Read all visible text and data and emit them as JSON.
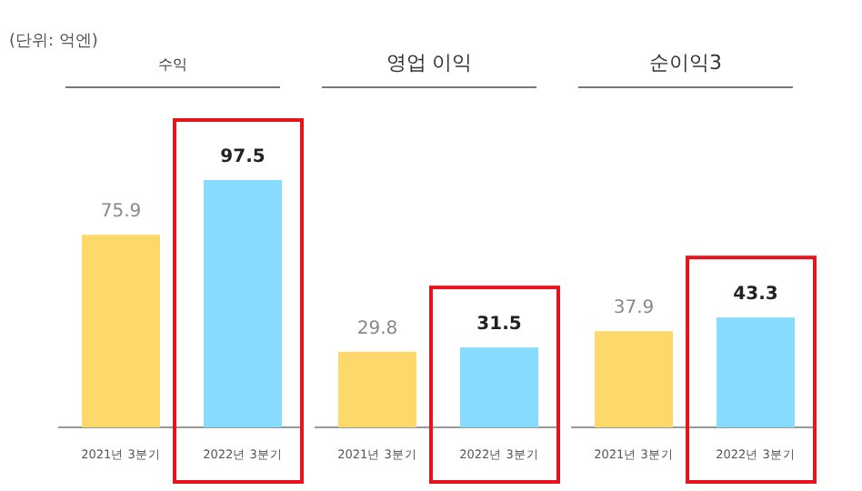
{
  "chart_data": [
    {
      "type": "bar",
      "title": "수익",
      "annotations": [
        "(단위: 억엔)"
      ],
      "categories": [
        "2021년 3분기",
        "2022년 3분기"
      ],
      "values": [
        75.9,
        97.5
      ],
      "colors": [
        "#fcd96a",
        "#87dbfc"
      ],
      "data_labels": true
    },
    {
      "type": "bar",
      "title": "영업 이익",
      "categories": [
        "2021년 3분기",
        "2022년 3분기"
      ],
      "values": [
        29.8,
        31.5
      ],
      "colors": [
        "#fcd96a",
        "#87dbfc"
      ],
      "data_labels": true
    },
    {
      "type": "bar",
      "title": "순이익3",
      "categories": [
        "2021년 3분기",
        "2022년 3분기"
      ],
      "values": [
        37.9,
        43.3
      ],
      "colors": [
        "#fcd96a",
        "#87dbfc"
      ],
      "data_labels": true
    }
  ]
}
